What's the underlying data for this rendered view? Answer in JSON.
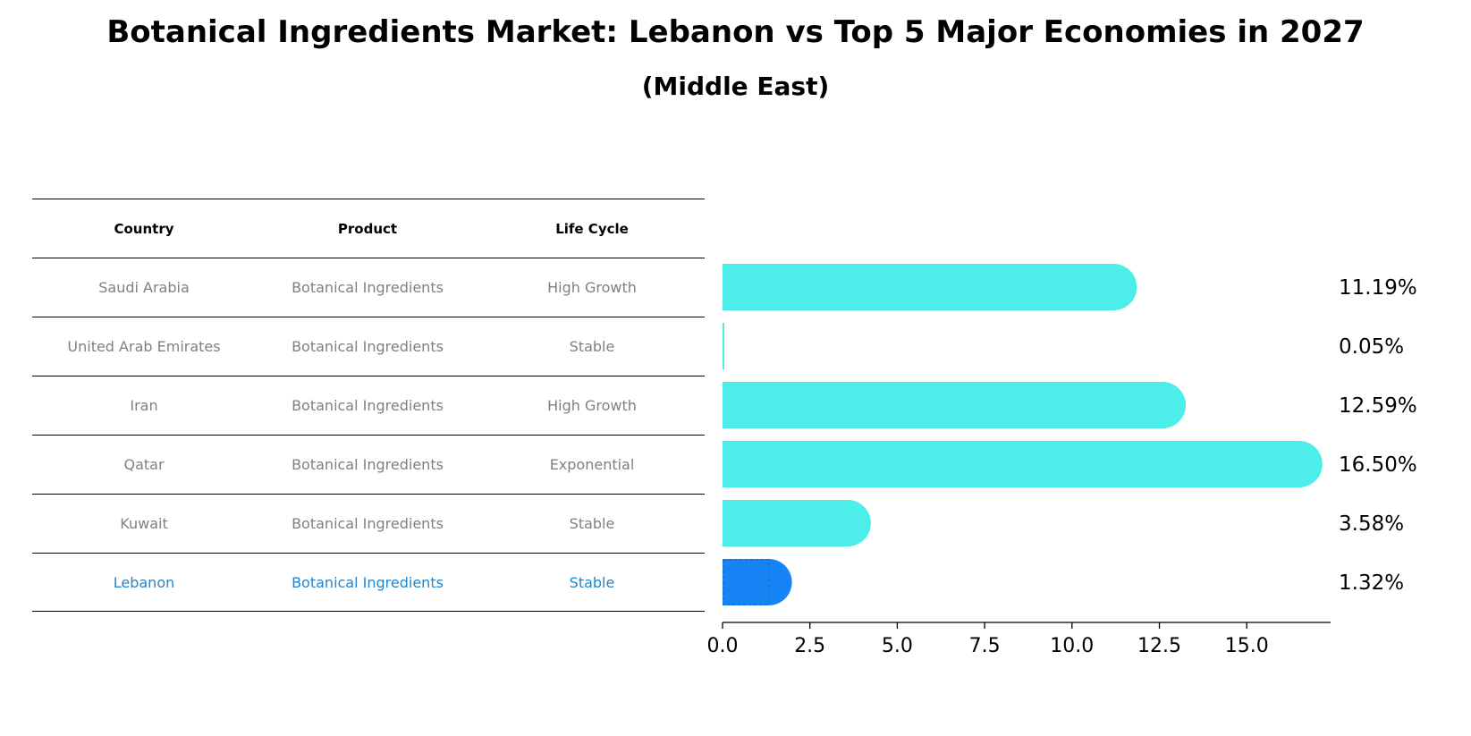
{
  "title": "Botanical Ingredients Market: Lebanon vs Top 5 Major Economies in 2027",
  "subtitle": "(Middle East)",
  "table": {
    "headers": [
      "Country",
      "Product",
      "Life Cycle"
    ],
    "rows": [
      {
        "country": "Saudi Arabia",
        "product": "Botanical Ingredients",
        "life_cycle": "High Growth"
      },
      {
        "country": "United Arab Emirates",
        "product": "Botanical Ingredients",
        "life_cycle": "Stable"
      },
      {
        "country": "Iran",
        "product": "Botanical Ingredients",
        "life_cycle": "High Growth"
      },
      {
        "country": "Qatar",
        "product": "Botanical Ingredients",
        "life_cycle": "Exponential"
      },
      {
        "country": "Kuwait",
        "product": "Botanical Ingredients",
        "life_cycle": "Stable"
      },
      {
        "country": "Lebanon",
        "product": "Botanical Ingredients",
        "life_cycle": "Stable"
      }
    ]
  },
  "chart_data": {
    "type": "bar",
    "orientation": "horizontal",
    "categories": [
      "Saudi Arabia",
      "United Arab Emirates",
      "Iran",
      "Qatar",
      "Kuwait",
      "Lebanon"
    ],
    "values": [
      11.19,
      0.05,
      12.59,
      16.5,
      3.58,
      1.32
    ],
    "value_labels": [
      "11.19%",
      "0.05%",
      "12.59%",
      "16.50%",
      "3.58%",
      "1.32%"
    ],
    "xlim": [
      0,
      17.4
    ],
    "xticks": [
      0.0,
      2.5,
      5.0,
      7.5,
      10.0,
      12.5,
      15.0
    ],
    "xtick_labels": [
      "0.0",
      "2.5",
      "5.0",
      "7.5",
      "10.0",
      "12.5",
      "15.0"
    ],
    "highlight": "Lebanon",
    "colors": {
      "default": "#4deeea",
      "highlight": "#1684f5"
    },
    "grid": false
  }
}
